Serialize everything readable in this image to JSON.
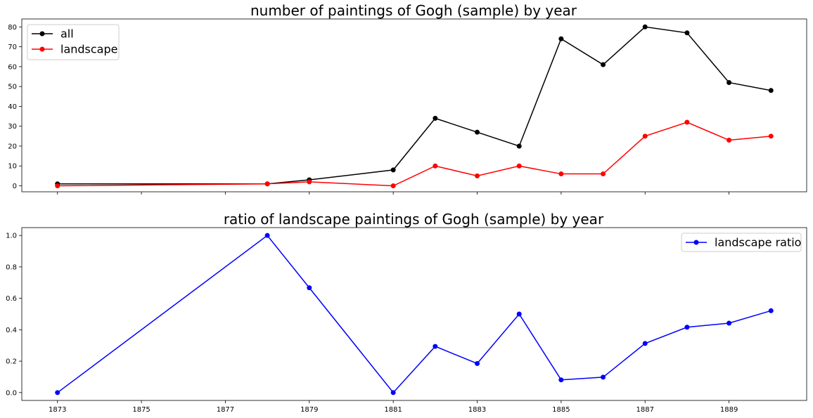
{
  "chart_data": [
    {
      "type": "line",
      "title": "number of paintings of Gogh (sample) by year",
      "xlabel": "",
      "ylabel": "",
      "x": [
        1873,
        1878,
        1879,
        1881,
        1882,
        1883,
        1884,
        1885,
        1886,
        1887,
        1888,
        1889,
        1890
      ],
      "xlim": [
        1872.15,
        1890.85
      ],
      "ylim": [
        -3,
        84
      ],
      "yticks": [
        0,
        10,
        20,
        30,
        40,
        50,
        60,
        70,
        80
      ],
      "yticklabels": [
        "0",
        "10",
        "20",
        "30",
        "40",
        "50",
        "60",
        "70",
        "80"
      ],
      "show_xtick_labels": false,
      "grid": false,
      "legend_position": "upper-left",
      "series": [
        {
          "name": "all",
          "color": "#000000",
          "marker": "circle",
          "values": [
            1,
            1,
            3,
            8,
            34,
            27,
            20,
            74,
            61,
            80,
            77,
            52,
            48
          ]
        },
        {
          "name": "landscape",
          "color": "#ff0000",
          "marker": "circle",
          "values": [
            0,
            1,
            2,
            0,
            10,
            5,
            10,
            6,
            6,
            25,
            32,
            23,
            25
          ]
        }
      ]
    },
    {
      "type": "line",
      "title": "ratio of landscape paintings of Gogh (sample) by year",
      "xlabel": "",
      "ylabel": "",
      "x": [
        1873,
        1878,
        1879,
        1881,
        1882,
        1883,
        1884,
        1885,
        1886,
        1887,
        1888,
        1889,
        1890
      ],
      "xlim": [
        1872.15,
        1890.85
      ],
      "ylim": [
        -0.05,
        1.05
      ],
      "yticks": [
        0.0,
        0.2,
        0.4,
        0.6,
        0.8,
        1.0
      ],
      "yticklabels": [
        "0.0",
        "0.2",
        "0.4",
        "0.6",
        "0.8",
        "1.0"
      ],
      "xticks": [
        1873,
        1875,
        1877,
        1879,
        1881,
        1883,
        1885,
        1887,
        1889
      ],
      "xticklabels": [
        "1873",
        "1875",
        "1877",
        "1879",
        "1881",
        "1883",
        "1885",
        "1887",
        "1889"
      ],
      "show_xtick_labels": true,
      "grid": false,
      "legend_position": "upper-right",
      "series": [
        {
          "name": "landscape ratio",
          "color": "#0000ff",
          "marker": "circle",
          "values": [
            0.0,
            1.0,
            0.667,
            0.0,
            0.294,
            0.185,
            0.5,
            0.081,
            0.098,
            0.3125,
            0.416,
            0.442,
            0.521
          ]
        }
      ]
    }
  ]
}
